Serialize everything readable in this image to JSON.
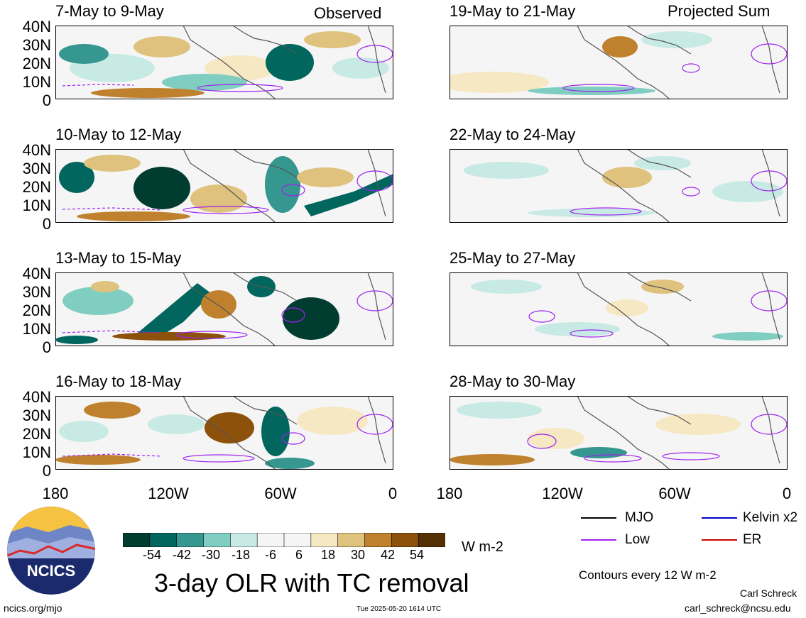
{
  "header": {
    "observed_label": "Observed",
    "projected_label": "Projected Sum"
  },
  "panels": {
    "p1": {
      "title": "7-May to 9-May"
    },
    "p2": {
      "title": "10-May to 12-May"
    },
    "p3": {
      "title": "13-May to 15-May"
    },
    "p4": {
      "title": "16-May to 18-May"
    },
    "p5": {
      "title": "19-May to 21-May"
    },
    "p6": {
      "title": "22-May to 24-May"
    },
    "p7": {
      "title": "25-May to 27-May"
    },
    "p8": {
      "title": "28-May to 30-May"
    }
  },
  "lat_labels": {
    "l40": "40N",
    "l30": "30N",
    "l20": "20N",
    "l10": "10N",
    "l0": "0"
  },
  "lon_labels": {
    "l180": "180",
    "l120": "120W",
    "l60": "60W",
    "l0": "0"
  },
  "colorbar": {
    "colors": [
      "#003c30",
      "#01665e",
      "#35978f",
      "#80cdc1",
      "#c7eae5",
      "#f5f5f5",
      "#f5f5f5",
      "#f6e8c3",
      "#dfc27d",
      "#bf812d",
      "#8c510a",
      "#543005"
    ],
    "ticks": [
      "-54",
      "-42",
      "-30",
      "-18",
      "-6",
      "6",
      "18",
      "30",
      "42",
      "54"
    ],
    "units": "W m-2"
  },
  "title": "3-day OLR with TC removal",
  "legend": {
    "mjo": {
      "label": "MJO",
      "color": "#000000"
    },
    "kelvin": {
      "label": "Kelvin x2",
      "color": "#0000cc"
    },
    "low": {
      "label": "Low",
      "color": "#a020f0"
    },
    "er": {
      "label": "ER",
      "color": "#cc0000"
    }
  },
  "contour_note": "Contours every 12 W m-2",
  "author": {
    "name": "Carl Schreck",
    "email": "carl_schreck@ncsu.edu"
  },
  "footer": {
    "url": "ncics.org/mjo",
    "timestamp": "Tue 2025-05-20 1614 UTC"
  },
  "logo": {
    "text": "NCICS"
  }
}
